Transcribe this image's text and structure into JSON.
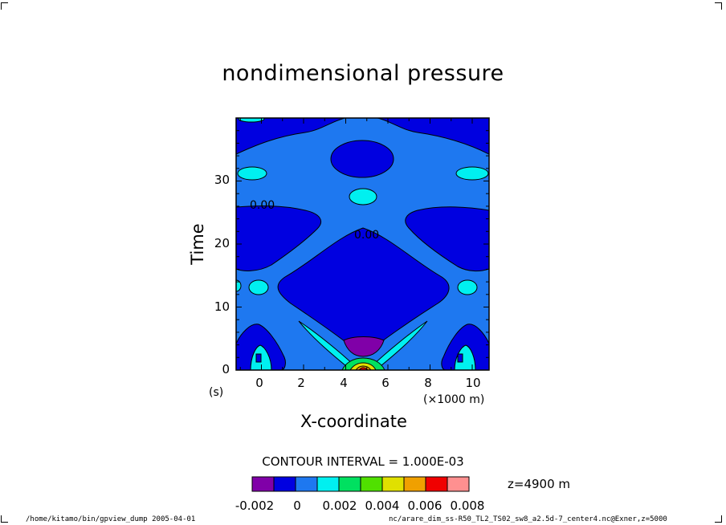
{
  "chart_data": {
    "type": "heatmap",
    "title": "nondimensional pressure",
    "xlabel": "X-coordinate",
    "ylabel": "Time",
    "x_unit": "(×1000 m)",
    "y_unit": "(s)",
    "xlim": [
      -1.2,
      10.8
    ],
    "ylim": [
      0,
      40
    ],
    "x_ticks": [
      "0",
      "2",
      "4",
      "6",
      "8",
      "10"
    ],
    "y_ticks": [
      "0",
      "10",
      "20",
      "30"
    ],
    "contour_labels": [
      "0.00",
      "0.00"
    ],
    "contour_interval": "CONTOUR INTERVAL = 1.000E-03",
    "level_note": "z=4900 m",
    "colorbar": {
      "tick_labels": [
        "-0.002",
        "0",
        "0.002",
        "0.004",
        "0.006",
        "0.008"
      ],
      "colors": [
        "#8000a8",
        "#0000e0",
        "#1e78f0",
        "#00f0f0",
        "#00e060",
        "#50e000",
        "#e0e000",
        "#f0a000",
        "#f00000",
        "#ff9090"
      ]
    },
    "regions": [
      {
        "level": "negative",
        "x_range": [
          -1.2,
          1.5
        ],
        "y_range": [
          15,
          26
        ]
      },
      {
        "level": "negative",
        "x_range": [
          7.6,
          10.8
        ],
        "y_range": [
          15,
          26
        ]
      },
      {
        "level": "negative",
        "x_range": [
          2,
          8.2
        ],
        "y_range": [
          5,
          22
        ]
      },
      {
        "level": "negative",
        "x_range": [
          3.7,
          6.3
        ],
        "y_range": [
          31,
          36
        ]
      },
      {
        "level": "most-negative",
        "x_range": [
          4.5,
          5.8
        ],
        "y_range": [
          2,
          5
        ]
      },
      {
        "level": "positive",
        "x_range": [
          4.6,
          5.4
        ],
        "y_range": [
          0,
          2
        ]
      }
    ]
  },
  "footer": {
    "left": "/home/kitamo/bin/gpview_dump  2005-04-01",
    "right": "nc/arare_dim_ss-R50_TL2_TS02_sw8_a2.5d-7_center4.nc@Exner,z=5000"
  },
  "colors": {
    "background_field": "#1e78f0"
  }
}
